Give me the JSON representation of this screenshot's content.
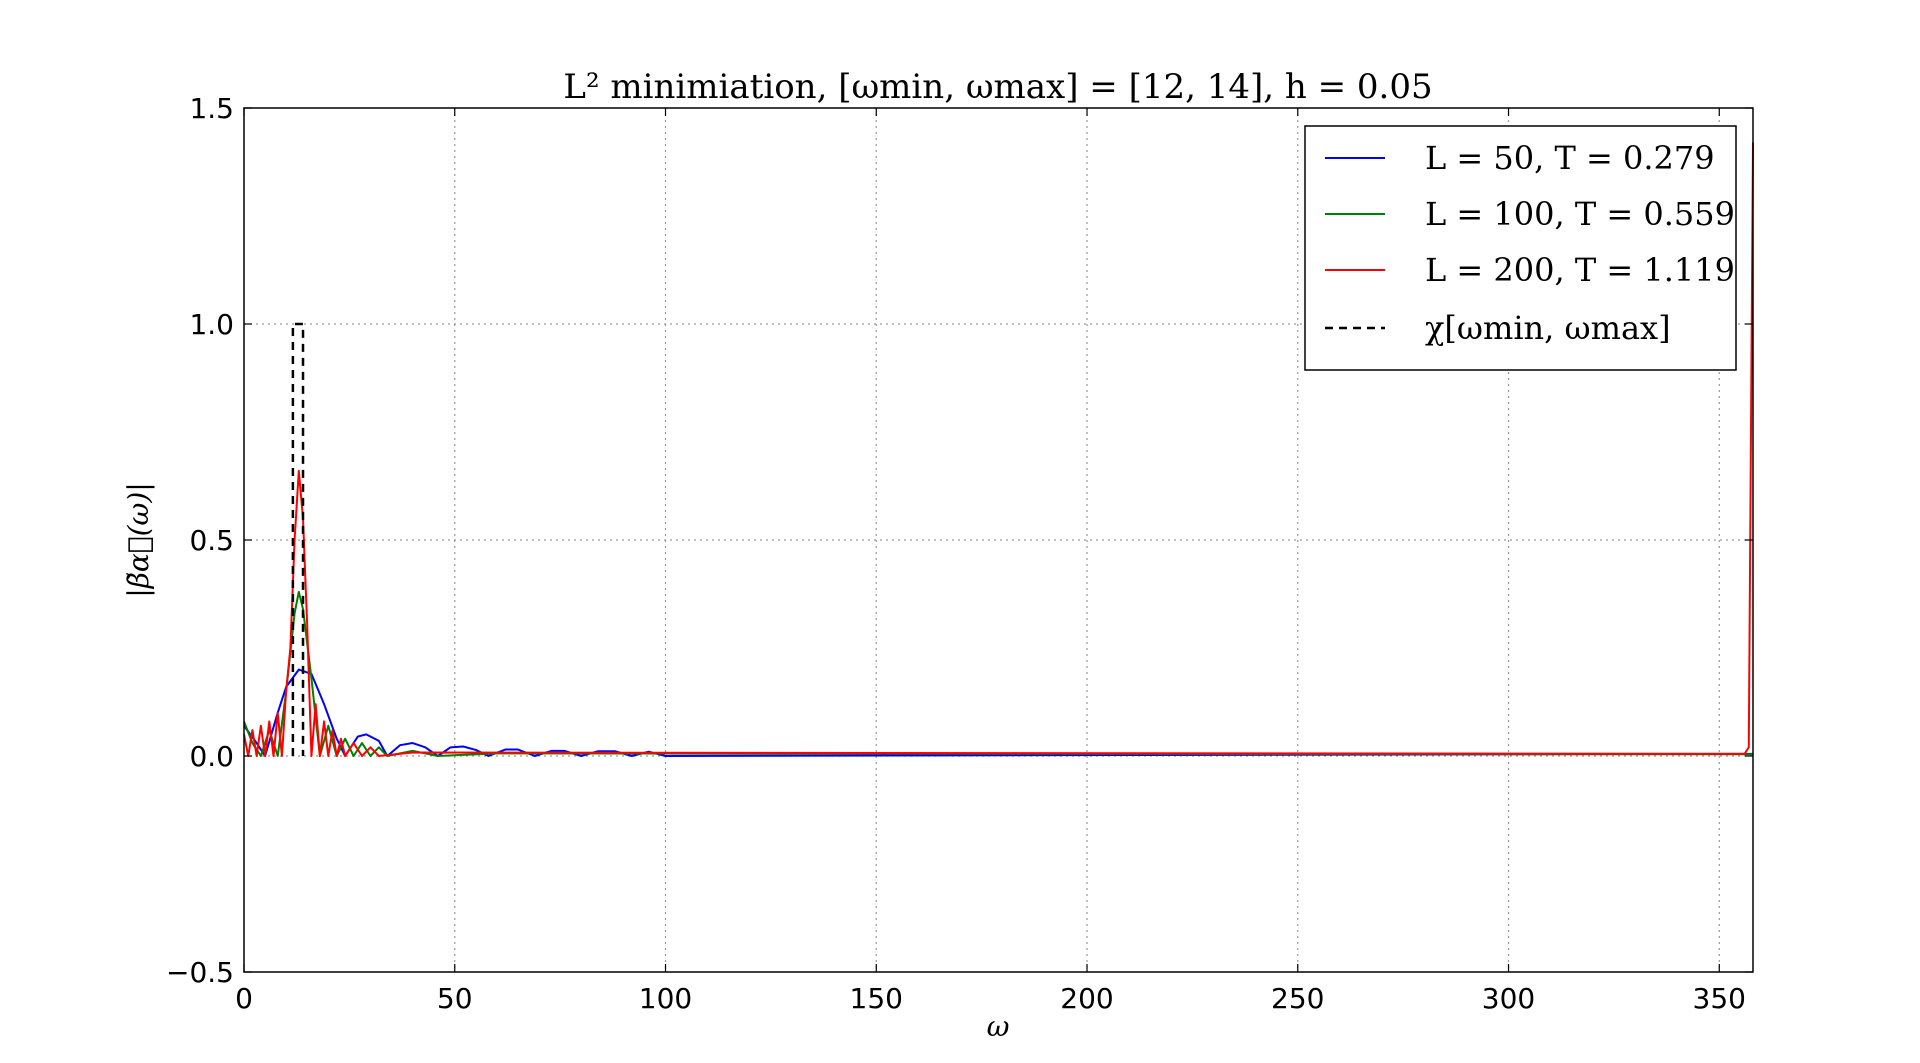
{
  "chart_data": {
    "type": "line",
    "title": "L² minimiation, [ωmin, ωmax] = [12, 14], h = 0.05",
    "xlabel": "ω",
    "ylabel": "|β̃α⃗(ω)|",
    "xlim": [
      0,
      358
    ],
    "ylim": [
      -0.5,
      1.5
    ],
    "xticks": [
      "0",
      "50",
      "100",
      "150",
      "200",
      "250",
      "300",
      "350"
    ],
    "yticks": [
      "−0.5",
      "0.0",
      "0.5",
      "1.0",
      "1.5"
    ],
    "grid": true,
    "legend_position": "top-right",
    "series": [
      {
        "name": "L = 50, T = 0.279",
        "color": "#0000ff",
        "peak_x": 13,
        "peak_y": 0.2,
        "points": [
          [
            0,
            0.07
          ],
          [
            3,
            0.03
          ],
          [
            5,
            0.0
          ],
          [
            8,
            0.1
          ],
          [
            10,
            0.16
          ],
          [
            13,
            0.2
          ],
          [
            16,
            0.19
          ],
          [
            19,
            0.12
          ],
          [
            22,
            0.04
          ],
          [
            24,
            0.0
          ],
          [
            27,
            0.045
          ],
          [
            29,
            0.05
          ],
          [
            32,
            0.035
          ],
          [
            34,
            0.0
          ],
          [
            37,
            0.025
          ],
          [
            40,
            0.03
          ],
          [
            43,
            0.02
          ],
          [
            46,
            0.0
          ],
          [
            49,
            0.02
          ],
          [
            52,
            0.022
          ],
          [
            55,
            0.014
          ],
          [
            58,
            0.0
          ],
          [
            62,
            0.015
          ],
          [
            65,
            0.015
          ],
          [
            69,
            0.0
          ],
          [
            73,
            0.012
          ],
          [
            76,
            0.012
          ],
          [
            80,
            0.0
          ],
          [
            84,
            0.011
          ],
          [
            88,
            0.011
          ],
          [
            92,
            0.0
          ],
          [
            96,
            0.01
          ],
          [
            100,
            0.0
          ],
          [
            358,
            0.005
          ]
        ]
      },
      {
        "name": "L = 100, T = 0.559",
        "color": "#008000",
        "peak_x": 13,
        "peak_y": 0.38,
        "points": [
          [
            0,
            0.08
          ],
          [
            2,
            0.03
          ],
          [
            4,
            0.0
          ],
          [
            6,
            0.06
          ],
          [
            8,
            0.0
          ],
          [
            10,
            0.15
          ],
          [
            12,
            0.33
          ],
          [
            13,
            0.38
          ],
          [
            14,
            0.34
          ],
          [
            16,
            0.18
          ],
          [
            18,
            0.0
          ],
          [
            20,
            0.07
          ],
          [
            22,
            0.0
          ],
          [
            24,
            0.04
          ],
          [
            26,
            0.0
          ],
          [
            28,
            0.03
          ],
          [
            30,
            0.0
          ],
          [
            32,
            0.02
          ],
          [
            34,
            0.0
          ],
          [
            40,
            0.012
          ],
          [
            46,
            0.0
          ],
          [
            60,
            0.006
          ],
          [
            358,
            0.004
          ]
        ]
      },
      {
        "name": "L = 200, T = 1.119",
        "color": "#ff0000",
        "peak_x": 13,
        "peak_y": 0.66,
        "spike_x": 358,
        "spike_y": 1.42,
        "points": [
          [
            0,
            0.05
          ],
          [
            1,
            0.0
          ],
          [
            2,
            0.06
          ],
          [
            3,
            0.0
          ],
          [
            4,
            0.07
          ],
          [
            5,
            0.0
          ],
          [
            6,
            0.08
          ],
          [
            7,
            0.0
          ],
          [
            8,
            0.1
          ],
          [
            9,
            0.0
          ],
          [
            10,
            0.15
          ],
          [
            11,
            0.25
          ],
          [
            12,
            0.5
          ],
          [
            13,
            0.66
          ],
          [
            14,
            0.55
          ],
          [
            15,
            0.3
          ],
          [
            16,
            0.0
          ],
          [
            17,
            0.12
          ],
          [
            18,
            0.0
          ],
          [
            19,
            0.08
          ],
          [
            20,
            0.0
          ],
          [
            21,
            0.06
          ],
          [
            22,
            0.0
          ],
          [
            23,
            0.04
          ],
          [
            24,
            0.0
          ],
          [
            26,
            0.03
          ],
          [
            28,
            0.0
          ],
          [
            30,
            0.02
          ],
          [
            32,
            0.0
          ],
          [
            40,
            0.008
          ],
          [
            356,
            0.005
          ],
          [
            357,
            0.02
          ],
          [
            358,
            1.42
          ]
        ]
      },
      {
        "name": "χ[ωmin, ωmax]",
        "color": "#000000",
        "dashed": true,
        "points": [
          [
            11.6,
            0
          ],
          [
            11.6,
            1
          ],
          [
            14,
            1
          ],
          [
            14,
            0
          ]
        ]
      }
    ]
  }
}
